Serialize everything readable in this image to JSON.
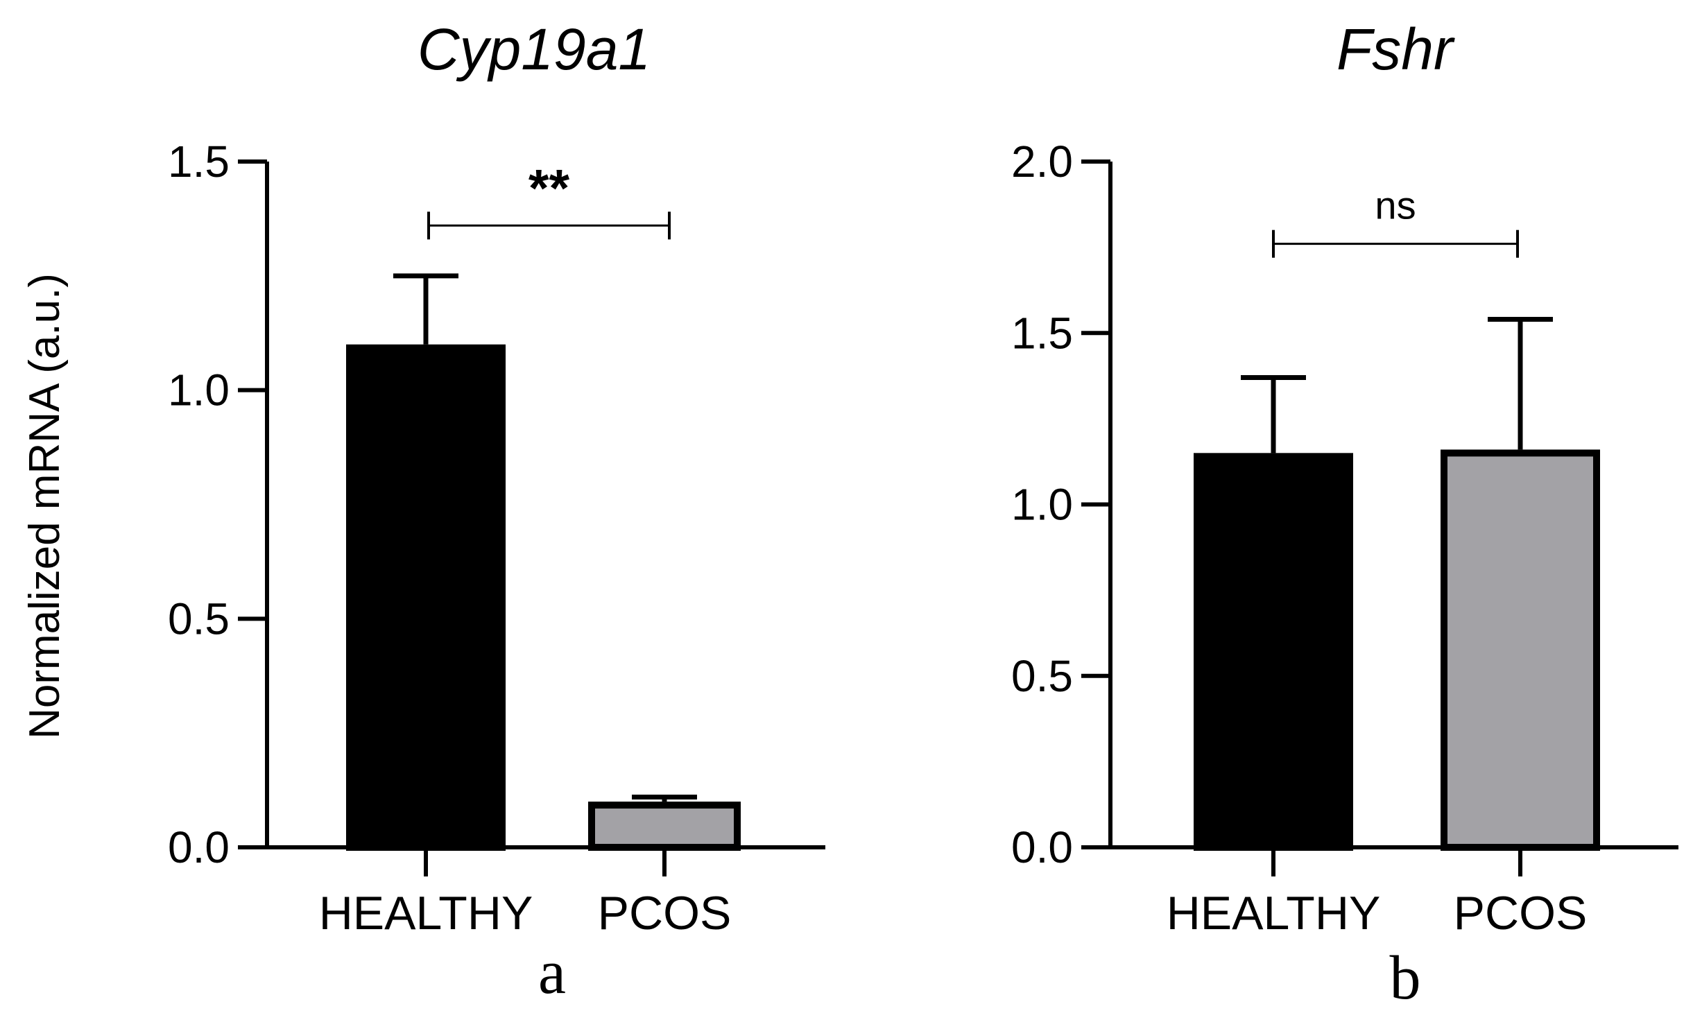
{
  "chart_data": [
    {
      "type": "bar",
      "panel_label": "a",
      "title": "Cyp19a1",
      "ylabel": "Normalized mRNA (a.u.)",
      "xlabel": "",
      "ylim": [
        0,
        1.5
      ],
      "yticks": [
        0.0,
        0.5,
        1.0,
        1.5
      ],
      "ytick_labels": [
        "0.0",
        "0.5",
        "1.0",
        "1.5"
      ],
      "categories": [
        "HEALTHY",
        "PCOS"
      ],
      "values": [
        1.1,
        0.1
      ],
      "errors": [
        0.15,
        0.01
      ],
      "bar_colors": [
        "#000000",
        "#a3a2a6"
      ],
      "significance": {
        "label": "**",
        "between": [
          "HEALTHY",
          "PCOS"
        ],
        "y": 1.36
      }
    },
    {
      "type": "bar",
      "panel_label": "b",
      "title": "Fshr",
      "ylabel": "",
      "xlabel": "",
      "ylim": [
        0,
        2.0
      ],
      "yticks": [
        0.0,
        0.5,
        1.0,
        1.5,
        2.0
      ],
      "ytick_labels": [
        "0.0",
        "0.5",
        "1.0",
        "1.5",
        "2.0"
      ],
      "categories": [
        "HEALTHY",
        "PCOS"
      ],
      "values": [
        1.15,
        1.16
      ],
      "errors": [
        0.22,
        0.38
      ],
      "bar_colors": [
        "#000000",
        "#a3a2a6"
      ],
      "significance": {
        "label": "ns",
        "between": [
          "HEALTHY",
          "PCOS"
        ],
        "y": 1.76
      }
    }
  ]
}
